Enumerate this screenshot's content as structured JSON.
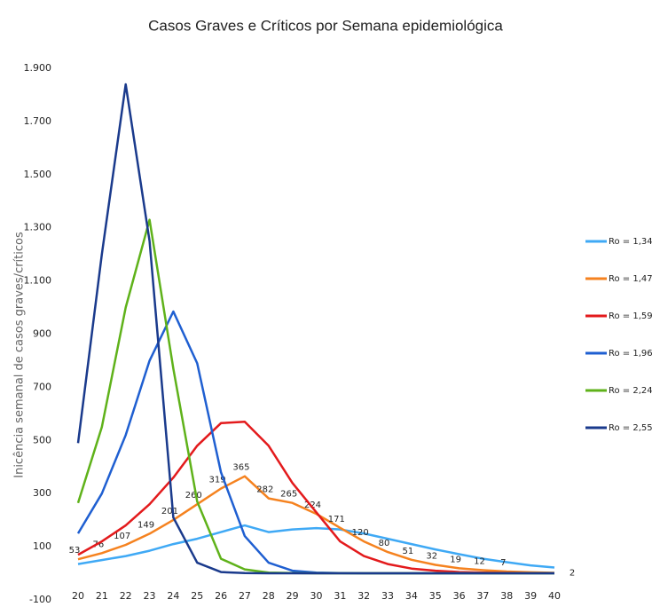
{
  "chart_data": {
    "type": "line",
    "title": "Casos Graves e Críticos por Semana epidemiológica",
    "y_label": "Inicência semanal de casos graves/críticos",
    "x": [
      20,
      21,
      22,
      23,
      24,
      25,
      26,
      27,
      28,
      29,
      30,
      31,
      32,
      33,
      34,
      35,
      36,
      37,
      38,
      39,
      40
    ],
    "xlim": [
      20,
      40
    ],
    "xticks": [
      20,
      21,
      22,
      23,
      24,
      25,
      26,
      27,
      28,
      29,
      30,
      31,
      32,
      33,
      34,
      35,
      36,
      37,
      38,
      39,
      40
    ],
    "ylim": [
      -100,
      1900
    ],
    "yticks": [
      -100,
      100,
      300,
      500,
      700,
      900,
      {
        "value": 1100,
        "label": "1.100"
      },
      {
        "value": 1300,
        "label": "1.300"
      },
      {
        "value": 1500,
        "label": "1.500"
      },
      {
        "value": 1700,
        "label": "1.700"
      },
      {
        "value": 1900,
        "label": "1.900"
      }
    ],
    "grid": false,
    "legend": "right",
    "series": [
      {
        "name": "Ro = 1,34",
        "color": "#3fa9f5",
        "values": [
          35,
          50,
          65,
          85,
          110,
          130,
          155,
          180,
          155,
          165,
          170,
          165,
          150,
          130,
          110,
          90,
          72,
          55,
          42,
          30,
          22
        ]
      },
      {
        "name": "Ro = 1,47",
        "color": "#f5821f",
        "values": [
          53,
          76,
          107,
          149,
          201,
          260,
          319,
          365,
          282,
          265,
          224,
          171,
          120,
          80,
          51,
          32,
          19,
          12,
          7,
          4,
          2
        ],
        "value_labels": [
          "53",
          "76",
          "107",
          "149",
          "201",
          "260",
          "319",
          "365",
          "282",
          "265",
          "224",
          "171",
          "120",
          "80",
          "51",
          "32",
          "19",
          "12",
          "7",
          null,
          "2"
        ]
      },
      {
        "name": "Ro = 1,59",
        "color": "#e31a1c",
        "values": [
          70,
          120,
          180,
          260,
          360,
          480,
          565,
          570,
          480,
          340,
          230,
          120,
          65,
          35,
          18,
          10,
          5,
          3,
          2,
          1,
          1
        ]
      },
      {
        "name": "Ro = 1,96",
        "color": "#1f5fd1",
        "values": [
          150,
          300,
          520,
          800,
          985,
          790,
          380,
          140,
          40,
          10,
          3,
          1,
          0,
          0,
          0,
          0,
          0,
          0,
          0,
          0,
          0
        ]
      },
      {
        "name": "Ro = 2,24",
        "color": "#5fb21a",
        "values": [
          265,
          550,
          1000,
          1330,
          770,
          270,
          55,
          15,
          3,
          1,
          0,
          0,
          0,
          0,
          0,
          0,
          0,
          0,
          0,
          0,
          0
        ]
      },
      {
        "name": "Ro = 2,55",
        "color": "#1a3a8c",
        "values": [
          490,
          1200,
          1840,
          1250,
          210,
          40,
          5,
          1,
          0,
          0,
          0,
          0,
          0,
          0,
          0,
          0,
          0,
          0,
          0,
          0,
          0
        ]
      }
    ]
  }
}
